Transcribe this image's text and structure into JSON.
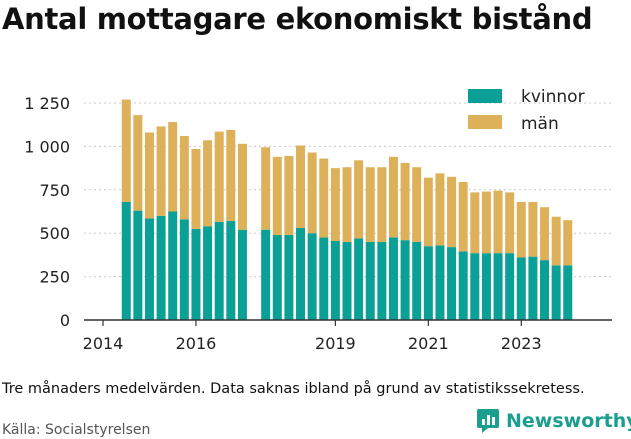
{
  "title": "Antal mottagare ekonomiskt bistånd",
  "caption": "Tre månaders medelvärden. Data saknas ibland på grund av statistikssekretess.",
  "source": "Källa: Socialstyrelsen",
  "brand": "Newsworthy",
  "colors": {
    "kvinnor": "#0aa095",
    "man": "#ddb05a",
    "axis": "#333333",
    "grid": "#c8c8c8",
    "brand": "#1a9e8f"
  },
  "chart_data": {
    "type": "bar",
    "stacked": true,
    "ylim": [
      0,
      1250
    ],
    "yticks": [
      0,
      250,
      500,
      750,
      1000,
      1250
    ],
    "ytick_labels": [
      "0",
      "250",
      "500",
      "750",
      "1 000",
      "1 250"
    ],
    "xticks": [
      2014,
      2016,
      2019,
      2021,
      2023
    ],
    "xtick_labels": [
      "2014",
      "2016",
      "2019",
      "2021",
      "2023"
    ],
    "grid": true,
    "legend_position": "top-right",
    "x": [
      2014.5,
      2014.75,
      2015.0,
      2015.25,
      2015.5,
      2015.75,
      2016.0,
      2016.25,
      2016.5,
      2016.75,
      2017.0,
      2017.5,
      2017.75,
      2018.0,
      2018.25,
      2018.5,
      2018.75,
      2019.0,
      2019.25,
      2019.5,
      2019.75,
      2020.0,
      2020.25,
      2020.5,
      2020.75,
      2021.0,
      2021.25,
      2021.5,
      2021.75,
      2022.0,
      2022.25,
      2022.5,
      2022.75,
      2023.0,
      2023.25,
      2023.5,
      2023.75,
      2024.0,
      2024.25
    ],
    "series": [
      {
        "name": "kvinnor",
        "values": [
          680,
          630,
          585,
          600,
          625,
          580,
          525,
          540,
          565,
          570,
          520,
          520,
          490,
          490,
          530,
          500,
          475,
          455,
          450,
          470,
          450,
          450,
          475,
          460,
          450,
          425,
          430,
          420,
          395,
          385,
          385,
          385,
          385,
          360,
          365,
          345,
          315,
          315,
          0
        ]
      },
      {
        "name": "män",
        "values": [
          590,
          550,
          495,
          515,
          515,
          480,
          460,
          495,
          520,
          525,
          495,
          475,
          450,
          455,
          475,
          465,
          455,
          420,
          430,
          450,
          430,
          430,
          465,
          445,
          430,
          395,
          415,
          405,
          400,
          350,
          355,
          360,
          350,
          320,
          315,
          305,
          280,
          260,
          0
        ]
      }
    ]
  }
}
